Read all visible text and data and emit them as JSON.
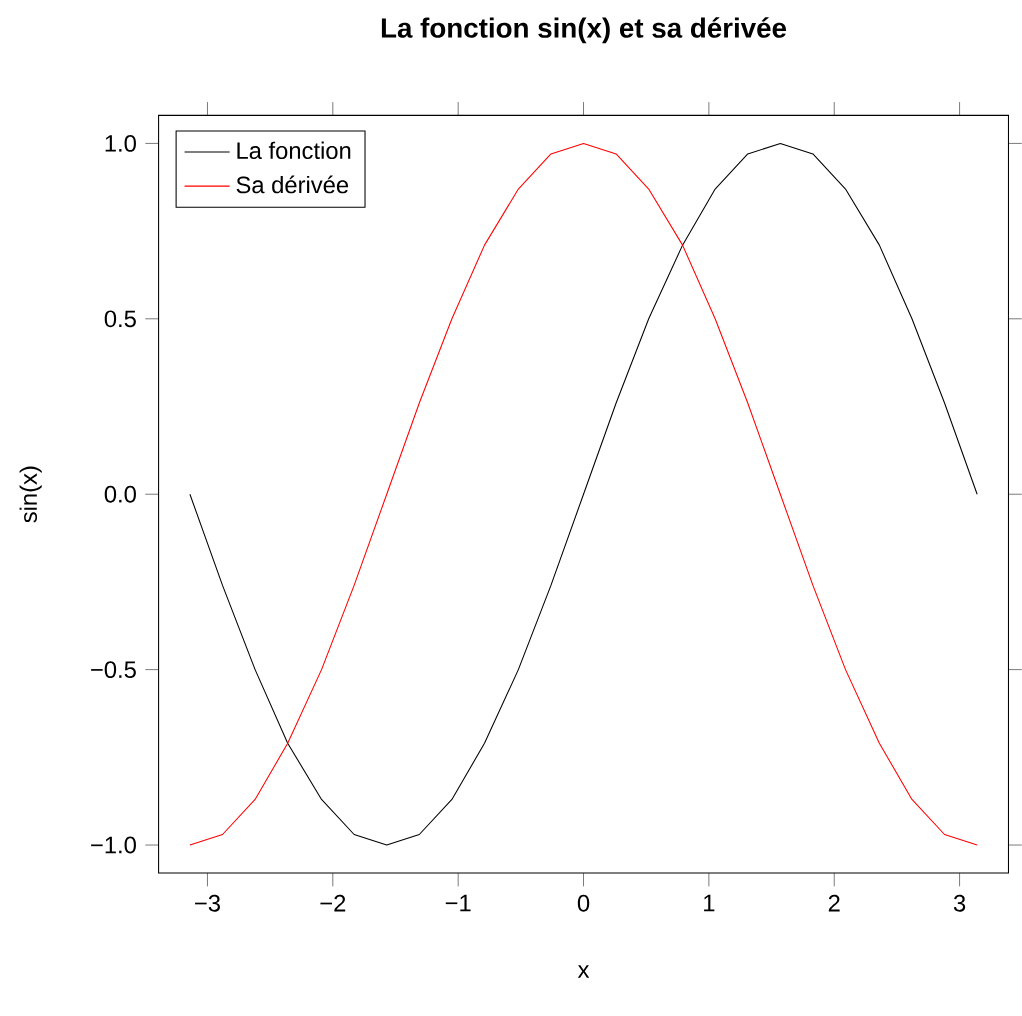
{
  "chart_data": {
    "type": "line",
    "title": "La fonction sin(x) et sa dérivée",
    "xlabel": "x",
    "ylabel": "sin(x)",
    "x": [
      -3.14,
      -2.88,
      -2.62,
      -2.36,
      -2.09,
      -1.83,
      -1.57,
      -1.31,
      -1.05,
      -0.79,
      -0.52,
      -0.26,
      0,
      0.26,
      0.52,
      0.79,
      1.05,
      1.31,
      1.57,
      1.83,
      2.09,
      2.36,
      2.62,
      2.88,
      3.14
    ],
    "series": [
      {
        "name": "La fonction",
        "color": "#000000",
        "values": [
          0,
          -0.26,
          -0.5,
          -0.71,
          -0.87,
          -0.97,
          -1,
          -0.97,
          -0.87,
          -0.71,
          -0.5,
          -0.26,
          0,
          0.26,
          0.5,
          0.71,
          0.87,
          0.97,
          1,
          0.97,
          0.87,
          0.71,
          0.5,
          0.26,
          0
        ]
      },
      {
        "name": "Sa dérivée",
        "color": "#ff0000",
        "values": [
          -1,
          -0.97,
          -0.87,
          -0.71,
          -0.5,
          -0.26,
          0,
          0.26,
          0.5,
          0.71,
          0.87,
          0.97,
          1,
          0.97,
          0.87,
          0.71,
          0.5,
          0.26,
          0,
          -0.26,
          -0.5,
          -0.71,
          -0.87,
          -0.97,
          -1
        ]
      }
    ],
    "xlim": [
      -3.39,
      3.39
    ],
    "ylim": [
      -1.08,
      1.08
    ],
    "xticks": [
      {
        "value": -3,
        "label": "−3"
      },
      {
        "value": -2,
        "label": "−2"
      },
      {
        "value": -1,
        "label": "−1"
      },
      0,
      1,
      2,
      3
    ],
    "yticks": [
      {
        "value": -1,
        "label": "−1.0"
      },
      {
        "value": -0.5,
        "label": "−0.5"
      },
      {
        "value": 0,
        "label": "0.0"
      },
      {
        "value": 0.5,
        "label": "0.5"
      },
      {
        "value": 1,
        "label": "1.0"
      }
    ],
    "grid": false,
    "legend": "top left",
    "line_style": "solid",
    "marker": "none"
  }
}
